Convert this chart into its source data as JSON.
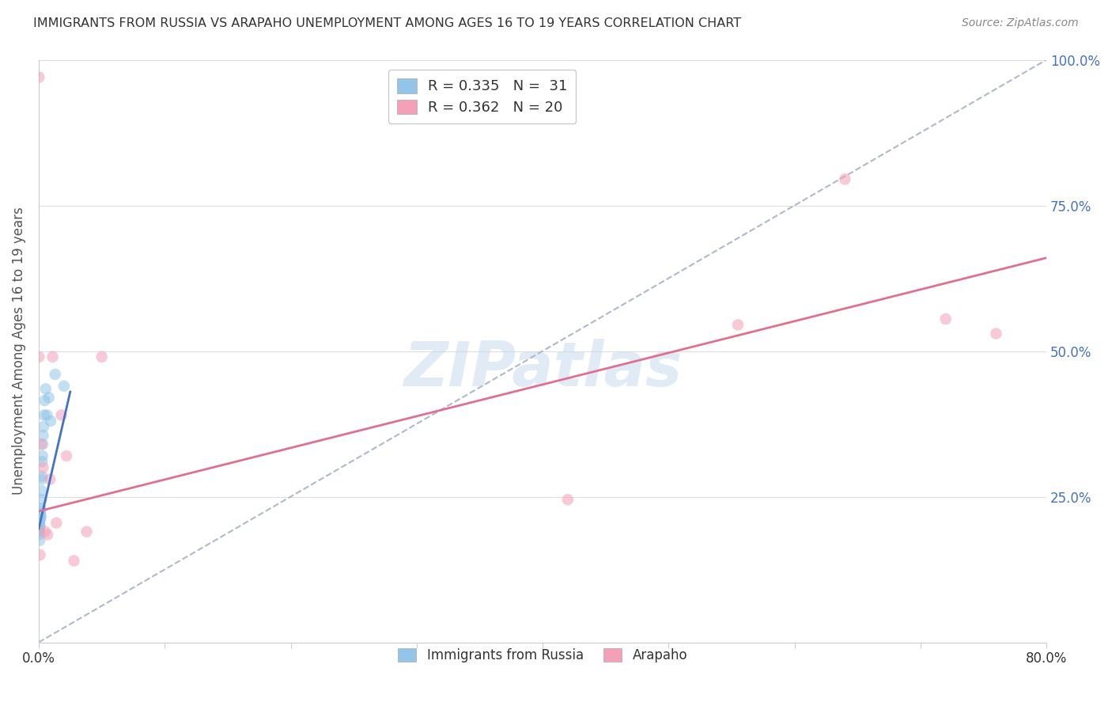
{
  "title": "IMMIGRANTS FROM RUSSIA VS ARAPAHO UNEMPLOYMENT AMONG AGES 16 TO 19 YEARS CORRELATION CHART",
  "source": "Source: ZipAtlas.com",
  "ylabel": "Unemployment Among Ages 16 to 19 years",
  "x_min": 0.0,
  "x_max": 0.8,
  "y_min": 0.0,
  "y_max": 1.0,
  "x_ticks": [
    0.0,
    0.1,
    0.2,
    0.3,
    0.4,
    0.5,
    0.6,
    0.7,
    0.8
  ],
  "y_ticks": [
    0.0,
    0.25,
    0.5,
    0.75,
    1.0
  ],
  "y_tick_labels": [
    "",
    "25.0%",
    "50.0%",
    "75.0%",
    "100.0%"
  ],
  "watermark": "ZIPatlas",
  "blue_color": "#92c5e8",
  "pink_color": "#f4a0b8",
  "blue_line_color": "#4472c4",
  "pink_line_color": "#e07090",
  "dashed_line_color": "#b0b8cc",
  "scatter_alpha": 0.55,
  "scatter_size": 110,
  "russia_x": [
    0.0002,
    0.0003,
    0.0004,
    0.0005,
    0.0006,
    0.0007,
    0.0008,
    0.001,
    0.001,
    0.0012,
    0.0013,
    0.0015,
    0.0016,
    0.0018,
    0.002,
    0.0022,
    0.0023,
    0.0025,
    0.0027,
    0.003,
    0.0032,
    0.0035,
    0.0038,
    0.0042,
    0.0046,
    0.0055,
    0.0065,
    0.008,
    0.0095,
    0.013,
    0.02
  ],
  "russia_y": [
    0.19,
    0.195,
    0.185,
    0.192,
    0.198,
    0.205,
    0.175,
    0.2,
    0.21,
    0.215,
    0.22,
    0.225,
    0.23,
    0.215,
    0.245,
    0.26,
    0.28,
    0.285,
    0.31,
    0.32,
    0.34,
    0.355,
    0.37,
    0.39,
    0.415,
    0.435,
    0.39,
    0.42,
    0.38,
    0.46,
    0.44
  ],
  "arapaho_x": [
    0.0002,
    0.0003,
    0.001,
    0.002,
    0.0035,
    0.005,
    0.007,
    0.009,
    0.011,
    0.014,
    0.018,
    0.022,
    0.028,
    0.038,
    0.05,
    0.42,
    0.555,
    0.64,
    0.72,
    0.76
  ],
  "arapaho_y": [
    0.49,
    0.97,
    0.15,
    0.34,
    0.3,
    0.19,
    0.185,
    0.28,
    0.49,
    0.205,
    0.39,
    0.32,
    0.14,
    0.19,
    0.49,
    0.245,
    0.545,
    0.795,
    0.555,
    0.53
  ],
  "blue_line_x0": 0.0,
  "blue_line_x1": 0.025,
  "blue_line_y0": 0.195,
  "blue_line_y1": 0.43,
  "pink_line_x0": 0.0,
  "pink_line_x1": 0.8,
  "pink_line_y0": 0.225,
  "pink_line_y1": 0.66,
  "dashed_line_x0": 0.0,
  "dashed_line_x1": 0.8,
  "dashed_line_y0": 0.0,
  "dashed_line_y1": 1.0
}
